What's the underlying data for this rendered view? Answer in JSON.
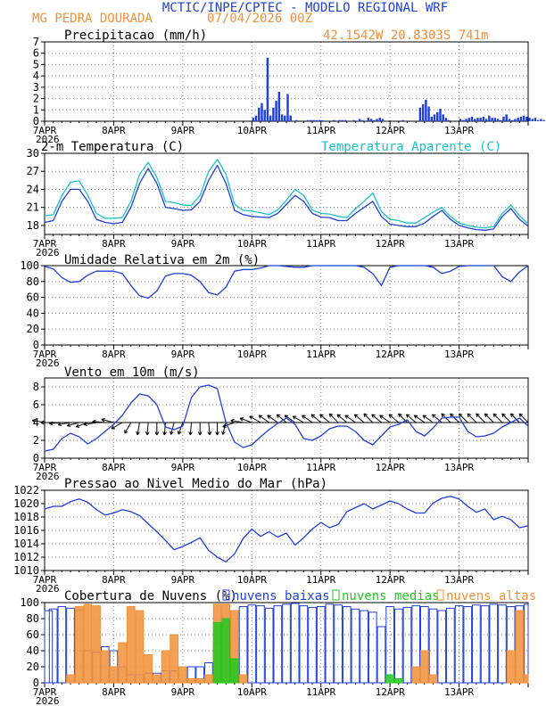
{
  "header": {
    "line1": "MCTIC/INPE/CPTEC - MODELO REGIONAL WRF",
    "station": "MG PEDRA DOURADA",
    "run": "07/04/2026 00Z",
    "coords": "42.1542W 20.8303S 741m"
  },
  "colors": {
    "blue": "#1f3fd8",
    "cyan": "#19c3c8",
    "orange": "#f0903a",
    "green": "#22c81e",
    "black": "#000000",
    "grid": "#888888"
  },
  "days": [
    "7APR",
    "8APR",
    "9APR",
    "10APR",
    "11APR",
    "12APR",
    "13APR"
  ],
  "year": "2026",
  "chart_data": [
    {
      "id": "precip",
      "type": "bar",
      "title": "Precipitacao (mm/h)",
      "ylim": [
        0,
        7
      ],
      "yticks": [
        0,
        1,
        2,
        3,
        4,
        5,
        6,
        7
      ],
      "x_hours_start": 0,
      "values": [
        0,
        0,
        0,
        0,
        0,
        0,
        0,
        0,
        0,
        0,
        0,
        0,
        0,
        0,
        0,
        0,
        0,
        0,
        0,
        0,
        0,
        0,
        0,
        0,
        0,
        0,
        0,
        0,
        0,
        0,
        0,
        0,
        0,
        0,
        0,
        0,
        0,
        0,
        0,
        0,
        0,
        0,
        0,
        0,
        0,
        0,
        0,
        0,
        0,
        0,
        0,
        0,
        0,
        0,
        0,
        0,
        0,
        0,
        0,
        0,
        0,
        0,
        0,
        0,
        0,
        0,
        0,
        0,
        0,
        0,
        0,
        0,
        0.3,
        0.5,
        1.2,
        1.6,
        1.0,
        5.6,
        0.5,
        1.2,
        1.8,
        2.6,
        0.6,
        0.5,
        2.4,
        0.5,
        0,
        0.1,
        0,
        0,
        0,
        0.1,
        0.1,
        0.1,
        0.1,
        0.1,
        0.1,
        0,
        0,
        0,
        0.1,
        0,
        0.1,
        0.1,
        0.1,
        0,
        0,
        0.1,
        0,
        0.2,
        0.1,
        0,
        0.3,
        0.2,
        0.1,
        0.2,
        0.3,
        0.2,
        0,
        0,
        0,
        0,
        0,
        0,
        0.1,
        0,
        0,
        0,
        0,
        0,
        1.2,
        1.5,
        1.9,
        1.3,
        0.4,
        0.6,
        0.8,
        1.1,
        0.6,
        0.3,
        0.1,
        0,
        0,
        0,
        0.2,
        0.1,
        0.2,
        0.3,
        0.4,
        0.2,
        0.3,
        0.3,
        0.4,
        0.2,
        0.5,
        0.3,
        0.3,
        0.2,
        0.1,
        0.4,
        0.6,
        0.2,
        0.1,
        0.2,
        0.3,
        0.4,
        0.5,
        0.4,
        0.3,
        0.2,
        0.3,
        0.1,
        0.2,
        0.1,
        0,
        0.1,
        0.2,
        0.1,
        0.2,
        0.1,
        0.2,
        0.1,
        0.1,
        0.2,
        0.3,
        0.5,
        0.2,
        0.1
      ]
    },
    {
      "id": "temp",
      "type": "line",
      "title": "2-m Temperatura (C)",
      "legend": "Temperatura Aparente (C)",
      "ylim": [
        16.5,
        30
      ],
      "yticks": [
        18,
        21,
        24,
        27,
        30
      ],
      "hours": [
        0,
        3,
        6,
        9,
        12,
        15,
        18,
        21,
        24,
        27,
        30,
        33,
        36,
        39,
        42,
        45,
        48,
        51,
        54,
        57,
        60,
        63,
        66,
        69,
        72,
        75,
        78,
        81,
        84,
        87,
        90,
        93,
        96,
        99,
        102,
        105,
        108,
        111,
        114,
        117,
        120,
        123,
        126,
        129,
        132,
        135,
        138,
        141,
        144,
        147,
        150,
        153,
        156,
        159,
        162,
        165,
        168
      ],
      "series": [
        {
          "name": "",
          "color": "blue",
          "values": [
            18.5,
            18.8,
            22,
            24,
            24,
            22,
            19,
            18.5,
            18.3,
            18.5,
            21,
            25,
            27.5,
            25,
            21,
            20.8,
            20.5,
            20.6,
            22,
            25.5,
            28,
            25,
            20.5,
            19.8,
            19.5,
            19.4,
            19.3,
            20,
            21.5,
            23,
            22,
            20,
            19.4,
            19.3,
            18.8,
            18.8,
            20,
            21,
            22,
            19.5,
            18.2,
            18,
            17.8,
            17.8,
            18.4,
            19.5,
            20.5,
            19,
            18,
            17.6,
            17.3,
            17.2,
            17.4,
            19.5,
            20.8,
            19,
            17.9
          ]
        },
        {
          "name": "Temperatura Aparente (C)",
          "color": "cyan",
          "values": [
            19.6,
            19.8,
            23,
            25.2,
            25.4,
            23,
            20,
            19.2,
            19.2,
            19.3,
            22,
            26.5,
            28.5,
            26,
            22,
            21.8,
            21.4,
            21.3,
            23,
            27,
            29,
            26.5,
            21.5,
            20.5,
            20.4,
            20.1,
            19.8,
            20.6,
            22.2,
            24,
            23,
            20.6,
            20,
            19.9,
            19.5,
            19.3,
            20.8,
            22,
            23.4,
            20.3,
            19,
            18.8,
            18.4,
            18.4,
            19.3,
            20.2,
            21,
            19.5,
            18.4,
            18,
            17.7,
            17.6,
            17.8,
            20,
            21.4,
            19.6,
            18.3
          ]
        }
      ]
    },
    {
      "id": "rh",
      "type": "line",
      "title": "Umidade Relativa em 2m (%)",
      "ylim": [
        0,
        100
      ],
      "yticks": [
        0,
        20,
        40,
        60,
        80,
        100
      ],
      "hours": [
        0,
        3,
        6,
        9,
        12,
        15,
        18,
        21,
        24,
        27,
        30,
        33,
        36,
        39,
        42,
        45,
        48,
        51,
        54,
        57,
        60,
        63,
        66,
        69,
        72,
        75,
        78,
        81,
        84,
        87,
        90,
        93,
        96,
        99,
        102,
        105,
        108,
        111,
        114,
        117,
        120,
        123,
        126,
        129,
        132,
        135,
        138,
        141,
        144,
        147,
        150,
        153,
        156,
        159,
        162,
        165,
        168
      ],
      "series": [
        {
          "name": "",
          "color": "blue",
          "values": [
            99,
            96,
            85,
            79,
            80,
            88,
            93,
            93,
            93,
            90,
            75,
            62,
            59,
            68,
            87,
            90,
            90,
            88,
            80,
            66,
            63,
            73,
            93,
            95,
            95,
            97,
            100,
            100,
            99,
            98,
            98,
            100,
            100,
            100,
            100,
            100,
            100,
            98,
            90,
            75,
            98,
            100,
            100,
            100,
            100,
            98,
            90,
            93,
            99,
            100,
            100,
            100,
            100,
            86,
            80,
            92,
            100
          ]
        }
      ]
    },
    {
      "id": "wind",
      "type": "line",
      "title": "Vento em 10m (m/s)",
      "ylim": [
        0,
        9
      ],
      "yticks": [
        0,
        2,
        4,
        6,
        8
      ],
      "hours": [
        0,
        3,
        6,
        9,
        12,
        15,
        18,
        21,
        24,
        27,
        30,
        33,
        36,
        39,
        42,
        45,
        48,
        51,
        54,
        57,
        60,
        63,
        66,
        69,
        72,
        75,
        78,
        81,
        84,
        87,
        90,
        93,
        96,
        99,
        102,
        105,
        108,
        111,
        114,
        117,
        120,
        123,
        126,
        129,
        132,
        135,
        138,
        141,
        144,
        147,
        150,
        153,
        156,
        159,
        162,
        165,
        168
      ],
      "series": [
        {
          "name": "",
          "color": "blue",
          "values": [
            0.8,
            1.0,
            2.2,
            2.8,
            2.4,
            1.6,
            2.2,
            3.0,
            3.8,
            4.8,
            6.2,
            7.2,
            7.0,
            6.0,
            3.5,
            3.2,
            3.6,
            6.8,
            8.0,
            8.2,
            7.8,
            4.0,
            1.8,
            1.2,
            1.5,
            2.4,
            3.2,
            3.9,
            4.5,
            3.8,
            2.2,
            2.0,
            2.5,
            3.3,
            3.6,
            3.6,
            3.0,
            2.0,
            1.5,
            2.5,
            3.5,
            3.8,
            4.3,
            3.0,
            2.5,
            3.4,
            4.5,
            4.6,
            4.6,
            3.0,
            2.4,
            2.5,
            2.8,
            3.5,
            4.0,
            4.5,
            3.6
          ]
        }
      ],
      "barbs": [
        -80,
        -90,
        -95,
        -100,
        -105,
        -110,
        -100,
        -85,
        -75,
        -120,
        -150,
        -170,
        -175,
        -180,
        -175,
        -165,
        -160,
        -175,
        -180,
        -185,
        -180,
        -165,
        -110,
        -80,
        -70,
        -60,
        -55,
        -55,
        -50,
        -55,
        -60,
        -55,
        -50,
        -50,
        -45,
        -50,
        -55,
        -50,
        -45,
        -50,
        -55,
        -50,
        -45,
        -50,
        -55,
        -55,
        -50,
        -45,
        -45,
        -45,
        -45,
        -45,
        -45,
        -45,
        -45,
        -45,
        -45
      ]
    },
    {
      "id": "slp",
      "type": "line",
      "title": "Pressao ao Nivel Medio do Mar (hPa)",
      "ylim": [
        1010,
        1022
      ],
      "yticks": [
        1010,
        1012,
        1014,
        1016,
        1018,
        1020,
        1022
      ],
      "hours": [
        0,
        3,
        6,
        9,
        12,
        15,
        18,
        21,
        24,
        27,
        30,
        33,
        36,
        39,
        42,
        45,
        48,
        51,
        54,
        57,
        60,
        63,
        66,
        69,
        72,
        75,
        78,
        81,
        84,
        87,
        90,
        93,
        96,
        99,
        102,
        105,
        108,
        111,
        114,
        117,
        120,
        123,
        126,
        129,
        132,
        135,
        138,
        141,
        144,
        147,
        150,
        153,
        156,
        159,
        162,
        165,
        168
      ],
      "series": [
        {
          "name": "",
          "color": "blue",
          "values": [
            1019.2,
            1019.6,
            1019.6,
            1020.3,
            1020.7,
            1020.2,
            1019.1,
            1018.3,
            1018.6,
            1019.1,
            1018.8,
            1018.2,
            1017.0,
            1015.8,
            1014.5,
            1013.1,
            1013.6,
            1014.2,
            1014.9,
            1013.0,
            1012.0,
            1011.3,
            1012.5,
            1014.8,
            1016.2,
            1015.1,
            1015.8,
            1015.0,
            1015.6,
            1013.8,
            1014.9,
            1016.2,
            1017.2,
            1016.4,
            1016.9,
            1018.8,
            1019.4,
            1020.0,
            1019.2,
            1019.8,
            1020.4,
            1020.0,
            1019.2,
            1018.6,
            1018.6,
            1020.1,
            1020.8,
            1021.1,
            1020.7,
            1019.6,
            1018.7,
            1019.2,
            1017.6,
            1018.1,
            1017.6,
            1016.4,
            1016.7
          ]
        }
      ]
    },
    {
      "id": "clouds",
      "type": "bar",
      "title": "Cobertura de Nuvens (%)",
      "ylim": [
        0,
        100
      ],
      "yticks": [
        0,
        20,
        40,
        60,
        80,
        100
      ],
      "hours": [
        0,
        3,
        6,
        9,
        12,
        15,
        18,
        21,
        24,
        27,
        30,
        33,
        36,
        39,
        42,
        45,
        48,
        51,
        54,
        57,
        60,
        63,
        66,
        69,
        72,
        75,
        78,
        81,
        84,
        87,
        90,
        93,
        96,
        99,
        102,
        105,
        108,
        111,
        114,
        117,
        120,
        123,
        126,
        129,
        132,
        135,
        138,
        141,
        144,
        147,
        150,
        153,
        156,
        159,
        162,
        165,
        168
      ],
      "series": [
        {
          "name": "nuvens baixas",
          "color": "blue",
          "values": [
            90,
            92,
            95,
            93,
            90,
            40,
            38,
            45,
            40,
            20,
            10,
            10,
            12,
            12,
            15,
            15,
            20,
            20,
            20,
            25,
            50,
            80,
            90,
            95,
            97,
            96,
            93,
            96,
            98,
            99,
            96,
            94,
            95,
            98,
            97,
            95,
            92,
            90,
            88,
            70,
            95,
            92,
            94,
            96,
            95,
            92,
            90,
            93,
            96,
            95,
            97,
            96,
            98,
            97,
            95,
            96,
            98
          ]
        },
        {
          "name": "nuvens medias",
          "color": "green",
          "values": [
            0,
            0,
            0,
            0,
            0,
            0,
            0,
            0,
            0,
            0,
            0,
            0,
            0,
            0,
            0,
            0,
            0,
            0,
            0,
            0,
            75,
            80,
            30,
            0,
            0,
            0,
            0,
            0,
            0,
            0,
            0,
            0,
            0,
            0,
            0,
            0,
            0,
            0,
            0,
            0,
            10,
            5,
            0,
            0,
            0,
            0,
            0,
            0,
            0,
            0,
            0,
            0,
            0,
            0,
            0,
            0,
            0
          ]
        },
        {
          "name": "nuvens altas",
          "color": "orange",
          "values": [
            0,
            0,
            0,
            10,
            95,
            98,
            96,
            40,
            20,
            50,
            95,
            90,
            35,
            10,
            40,
            60,
            20,
            5,
            5,
            10,
            98,
            98,
            90,
            10,
            0,
            0,
            0,
            0,
            0,
            0,
            0,
            0,
            0,
            0,
            0,
            0,
            0,
            0,
            0,
            0,
            0,
            0,
            0,
            20,
            40,
            10,
            0,
            0,
            0,
            0,
            0,
            0,
            0,
            0,
            40,
            90,
            10
          ]
        }
      ]
    }
  ]
}
